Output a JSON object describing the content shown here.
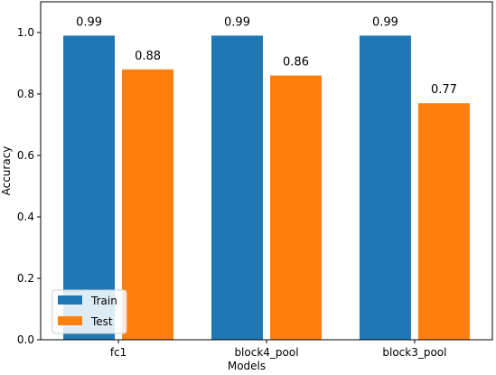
{
  "chart_data": {
    "type": "bar",
    "title": "",
    "xlabel": "Models",
    "ylabel": "Accuracy",
    "categories": [
      "fc1",
      "block4_pool",
      "block3_pool"
    ],
    "series": [
      {
        "name": "Train",
        "values": [
          0.99,
          0.99,
          0.99
        ],
        "labels": [
          "0.99",
          "0.99",
          "0.99"
        ],
        "color": "#1f77b4"
      },
      {
        "name": "Test",
        "values": [
          0.88,
          0.86,
          0.77
        ],
        "labels": [
          "0.88",
          "0.86",
          "0.77"
        ],
        "color": "#ff7f0e"
      }
    ],
    "ylim": [
      0,
      1.1
    ],
    "yticks": [
      0.0,
      0.2,
      0.4,
      0.6,
      0.8,
      1.0
    ],
    "ytick_labels": [
      "0.0",
      "0.2",
      "0.4",
      "0.6",
      "0.8",
      "1.0"
    ],
    "grid": false,
    "legend_position": "lower-left"
  }
}
